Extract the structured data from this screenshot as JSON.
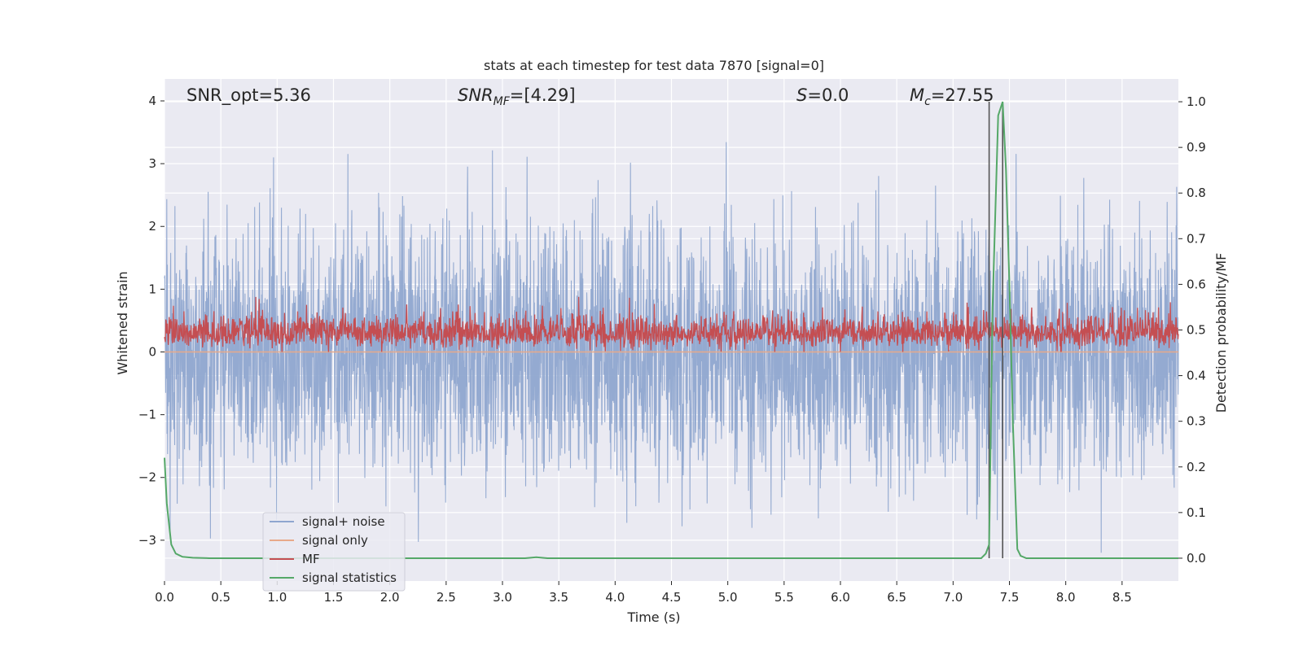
{
  "chart_data": {
    "type": "line",
    "title": "stats at each timestep for test data 7870 [signal=0]",
    "xlabel": "Time (s)",
    "ylabel_left": "Whitened strain",
    "ylabel_right": "Detection probability/MF",
    "xlim": [
      0.0,
      9.0
    ],
    "ylim_left": [
      -3.65,
      4.35
    ],
    "ylim_right": [
      -0.05,
      1.05
    ],
    "xticks": [
      "0.0",
      "0.5",
      "1.0",
      "1.5",
      "2.0",
      "2.5",
      "3.0",
      "3.5",
      "4.0",
      "4.5",
      "5.0",
      "5.5",
      "6.0",
      "6.5",
      "7.0",
      "7.5",
      "8.0",
      "8.5"
    ],
    "xtick_values": [
      0.0,
      0.5,
      1.0,
      1.5,
      2.0,
      2.5,
      3.0,
      3.5,
      4.0,
      4.5,
      5.0,
      5.5,
      6.0,
      6.5,
      7.0,
      7.5,
      8.0,
      8.5
    ],
    "yticks_left": [
      "−3",
      "−2",
      "−1",
      "0",
      "1",
      "2",
      "3",
      "4"
    ],
    "ytick_values_left": [
      -3,
      -2,
      -1,
      0,
      1,
      2,
      3,
      4
    ],
    "yticks_right": [
      "0.0",
      "0.1",
      "0.2",
      "0.3",
      "0.4",
      "0.5",
      "0.6",
      "0.7",
      "0.8",
      "0.9",
      "1.0"
    ],
    "ytick_values_right": [
      0.0,
      0.1,
      0.2,
      0.3,
      0.4,
      0.5,
      0.6,
      0.7,
      0.8,
      0.9,
      1.0
    ],
    "grid": true,
    "legend_position": "lower-left",
    "annotations": [
      {
        "id": "snr_opt",
        "text": "SNR_opt=5.36",
        "x": 0.19
      },
      {
        "id": "snr_mf",
        "text": "=[4.29]",
        "x": 2.6
      },
      {
        "id": "s_val",
        "text": "=0.0",
        "x": 5.6
      },
      {
        "id": "mc",
        "text": "=27.55",
        "x": 6.6
      }
    ],
    "vertical_lines": [
      7.32,
      7.44
    ],
    "colors": {
      "background": "#eaeaf2",
      "noise": "#8fa6cf",
      "signal_only": "#e8a98a",
      "mf": "#c44e52",
      "stats": "#55a868",
      "vline": "#555555"
    },
    "series": [
      {
        "name": "signal+ noise",
        "axis": "left",
        "description": "whitened strain, spans about −3.2 to 3.4, dense noise"
      },
      {
        "name": "signal only",
        "axis": "left",
        "value": 0.0
      },
      {
        "name": "MF",
        "axis": "left",
        "description": "matched-filter output fluctuating between about 0.0 and 1.0"
      },
      {
        "name": "signal statistics",
        "axis": "right",
        "x": [
          0.0,
          0.02,
          0.06,
          0.1,
          0.16,
          0.25,
          0.4,
          1.0,
          2.0,
          3.0,
          3.2,
          3.3,
          3.4,
          4.0,
          5.0,
          6.0,
          7.0,
          7.25,
          7.29,
          7.32,
          7.35,
          7.4,
          7.44,
          7.47,
          7.5,
          7.53,
          7.57,
          7.6,
          7.65,
          8.0,
          8.5,
          9.0
        ],
        "y": [
          0.22,
          0.12,
          0.03,
          0.01,
          0.003,
          0.001,
          0.0,
          0.0,
          0.0,
          0.0,
          0.0,
          0.002,
          0.0,
          0.0,
          0.0,
          0.0,
          0.0,
          0.0,
          0.01,
          0.03,
          0.55,
          0.97,
          1.0,
          0.85,
          0.6,
          0.3,
          0.02,
          0.005,
          0.0,
          0.0,
          0.0,
          0.0
        ]
      }
    ]
  }
}
